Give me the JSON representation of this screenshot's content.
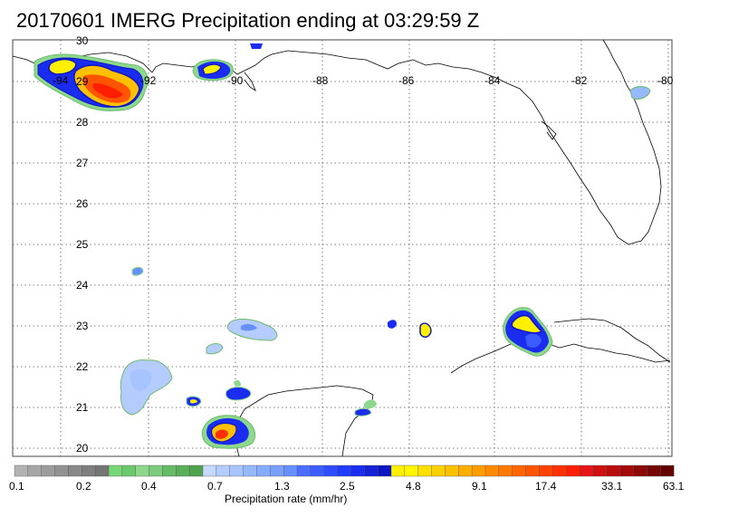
{
  "title": "20170601 IMERG Precipitation ending at 03:29:59 Z",
  "lat_labels": [
    "30",
    "29",
    "28",
    "27",
    "26",
    "25",
    "24",
    "23",
    "22",
    "21",
    "20"
  ],
  "lon_labels": [
    "-94",
    "-92",
    "-90",
    "-88",
    "-86",
    "-84",
    "-82",
    "-80"
  ],
  "colorbar": {
    "label": "Precipitation rate (mm/hr)",
    "ticks": [
      "0.1",
      "0.2",
      "0.4",
      "0.7",
      "1.3",
      "2.5",
      "4.8",
      "9.1",
      "17.4",
      "33.1",
      "63.1"
    ],
    "colors": [
      "#b3b3b3",
      "#a6a6a6",
      "#9c9c9c",
      "#929292",
      "#888888",
      "#7e7e7e",
      "#757575",
      "#78d878",
      "#6cc86c",
      "#8ed88e",
      "#7acc7a",
      "#66bb66",
      "#5aaf5a",
      "#4fa34f",
      "#c6d9ff",
      "#b4ccff",
      "#a8c4ff",
      "#96b8ff",
      "#86acff",
      "#7aa0ff",
      "#6690ff",
      "#4c6cff",
      "#3d5cff",
      "#2f4cff",
      "#203cff",
      "#1a2cf0",
      "#1422d8",
      "#0c16c0",
      "#fff000",
      "#fff700",
      "#ffe000",
      "#ffd000",
      "#ffc000",
      "#ffae00",
      "#ff9c00",
      "#ff8a00",
      "#ff7800",
      "#ff6600",
      "#ff5400",
      "#ff4200",
      "#ff3000",
      "#ff1e00",
      "#e61414",
      "#d01010",
      "#ba0c0c",
      "#a40a0a",
      "#8e0808",
      "#780606",
      "#620404"
    ]
  }
}
